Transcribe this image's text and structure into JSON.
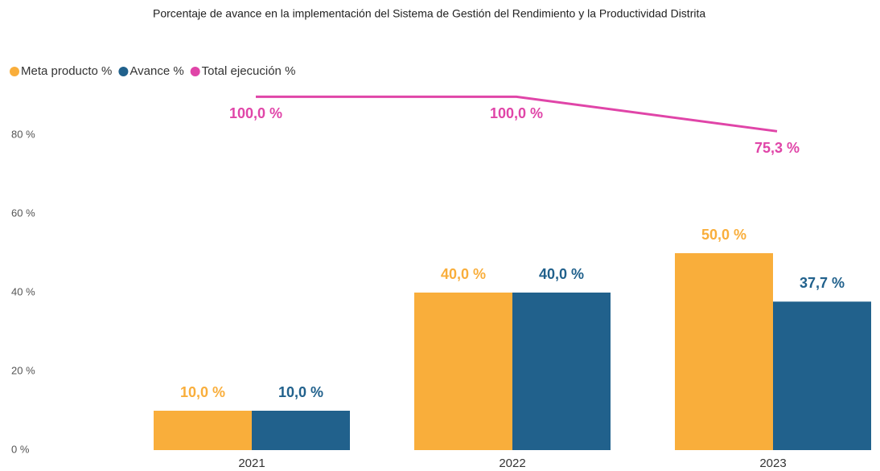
{
  "chart_data": {
    "type": "combo",
    "title": "Porcentaje de avance en la implementación del Sistema de Gestión del Rendimiento y la Productividad Distrita",
    "categories": [
      "2021",
      "2022",
      "2023"
    ],
    "series": [
      {
        "name": "Meta producto %",
        "color": "#f9ae3b",
        "type": "bar",
        "values": [
          10,
          40,
          50
        ],
        "value_labels": [
          "10,0 %",
          "40,0 %",
          "50,0 %"
        ]
      },
      {
        "name": "Avance %",
        "color": "#21618c",
        "type": "bar",
        "values": [
          10,
          40,
          37.7
        ],
        "value_labels": [
          "10,0 %",
          "40,0 %",
          "37,7 %"
        ]
      },
      {
        "name": "Total ejecución %",
        "color": "#e045a8",
        "type": "line",
        "axis": "y2",
        "values": [
          100,
          100,
          75.3
        ],
        "value_labels": [
          "100,0 %",
          "100,0 %",
          "75,3 %"
        ]
      }
    ],
    "ylim": [
      0,
      100
    ],
    "yticks": [
      {
        "value": 0,
        "label": "0 %"
      },
      {
        "value": 20,
        "label": "20 %"
      },
      {
        "value": 40,
        "label": "40 %"
      },
      {
        "value": 60,
        "label": "60 %"
      },
      {
        "value": 80,
        "label": "80 %"
      }
    ],
    "y2lim": [
      -153,
      129
    ],
    "legend": "top-left"
  }
}
